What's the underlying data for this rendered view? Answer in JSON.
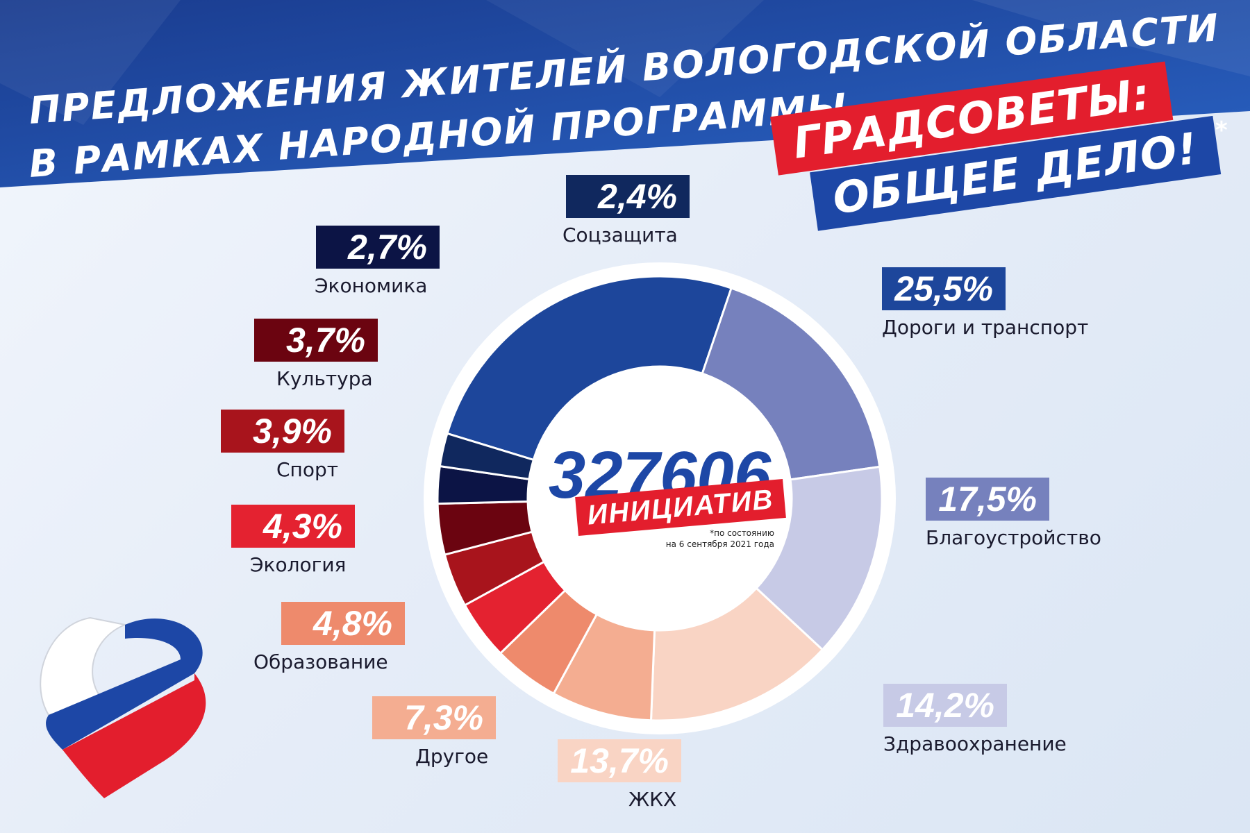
{
  "header": {
    "title_line1": "ПРЕДЛОЖЕНИЯ ЖИТЕЛЕЙ ВОЛОГОДСКОЙ ОБЛАСТИ",
    "title_line2": "В РАМКАХ НАРОДНОЙ ПРОГРАММЫ",
    "slogan_line1": "ГРАДСОВЕТЫ:",
    "slogan_line2": "ОБЩЕЕ ДЕЛО!",
    "slogan_mark": "*"
  },
  "center": {
    "number": "327606",
    "label": "ИНИЦИАТИВ",
    "note_line1": "*по состоянию",
    "note_line2": "на 6 сентября 2021 года"
  },
  "colors": {
    "banner_dark": "#1a3c8f",
    "banner_light": "#2a63c4",
    "accent_red": "#e31e2d",
    "accent_blue": "#1d47a6"
  },
  "chart_data": {
    "type": "pie",
    "donut": true,
    "title": "ПРЕДЛОЖЕНИЯ ЖИТЕЛЕЙ ВОЛОГОДСКОЙ ОБЛАСТИ В РАМКАХ НАРОДНОЙ ПРОГРАММЫ",
    "slices": [
      {
        "name": "Дороги и транспорт",
        "value": 25.5,
        "label": "25,5%",
        "color": "#1d469b"
      },
      {
        "name": "Благоустройство",
        "value": 17.5,
        "label": "17,5%",
        "color": "#7681bd"
      },
      {
        "name": "Здравоохранение",
        "value": 14.2,
        "label": "14,2%",
        "color": "#c7cae6"
      },
      {
        "name": "ЖКХ",
        "value": 13.7,
        "label": "13,7%",
        "color": "#f9d4c4"
      },
      {
        "name": "Другое",
        "value": 7.3,
        "label": "7,3%",
        "color": "#f4ad91"
      },
      {
        "name": "Образование",
        "value": 4.8,
        "label": "4,8%",
        "color": "#ee8a6c"
      },
      {
        "name": "Экология",
        "value": 4.3,
        "label": "4,3%",
        "color": "#e42230"
      },
      {
        "name": "Спорт",
        "value": 3.9,
        "label": "3,9%",
        "color": "#a8141c"
      },
      {
        "name": "Культура",
        "value": 3.7,
        "label": "3,7%",
        "color": "#6b0410"
      },
      {
        "name": "Экономика",
        "value": 2.7,
        "label": "2,7%",
        "color": "#0c1445"
      },
      {
        "name": "Соцзащита",
        "value": 2.4,
        "label": "2,4%",
        "color": "#10285e"
      }
    ]
  }
}
